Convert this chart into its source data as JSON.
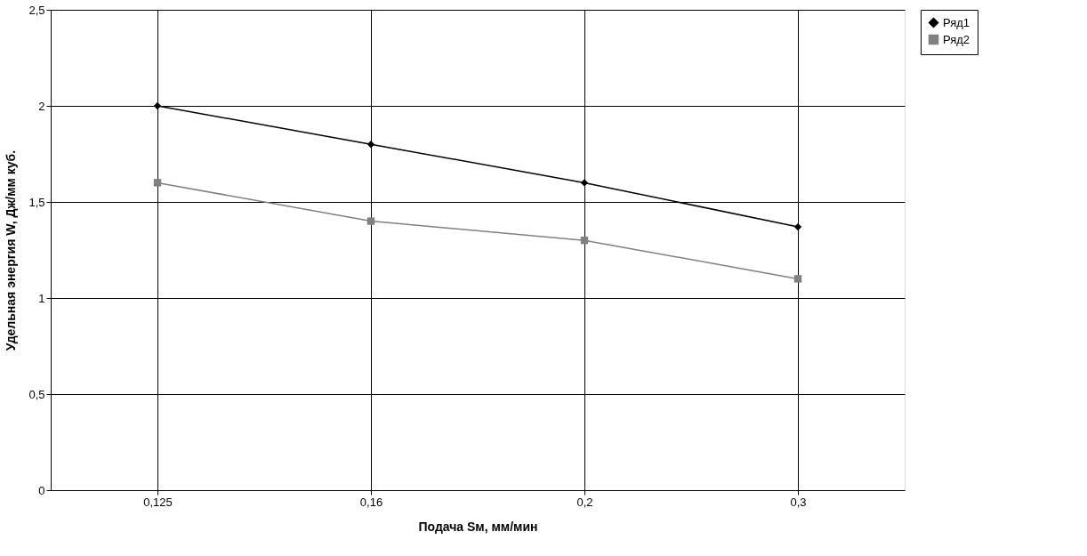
{
  "chart_data": {
    "type": "line",
    "xlabel": "Подача Sм, мм/мин",
    "ylabel": "Удельная энергия W, Дж/мм куб.",
    "categories": [
      "0,125",
      "0,16",
      "0,2",
      "0,3"
    ],
    "series": [
      {
        "name": "Ряд1",
        "color": "#000000",
        "marker": "diamond",
        "values": [
          2.0,
          1.8,
          1.6,
          1.37
        ]
      },
      {
        "name": "Ряд2",
        "color": "#808080",
        "marker": "square",
        "values": [
          1.6,
          1.4,
          1.3,
          1.1
        ]
      }
    ],
    "ylim": [
      0,
      2.5
    ],
    "yticks": [
      0,
      {
        "value": 0.5,
        "label": "0,5"
      },
      1,
      {
        "value": 1.5,
        "label": "1,5"
      },
      2,
      {
        "value": 2.5,
        "label": "2,5"
      }
    ],
    "grid": true,
    "legend": "right",
    "line_style": "solid"
  }
}
